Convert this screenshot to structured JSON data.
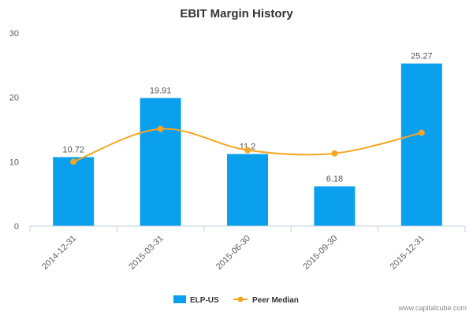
{
  "chart_data": {
    "type": "bar",
    "title": "EBIT Margin History",
    "categories": [
      "2014-12-31",
      "2015-03-31",
      "2015-06-30",
      "2015-09-30",
      "2015-12-31"
    ],
    "series": [
      {
        "name": "ELP-US",
        "type": "bar",
        "values": [
          10.72,
          19.91,
          11.2,
          6.18,
          25.27
        ],
        "value_labels": [
          "10.72",
          "19.91",
          "11.2",
          "6.18",
          "25.27"
        ],
        "color": "#0aa0ee"
      },
      {
        "name": "Peer Median",
        "type": "line",
        "values": [
          10.0,
          15.1,
          11.8,
          11.3,
          14.5
        ],
        "color": "#f5a623"
      }
    ],
    "y_ticks": [
      "0",
      "10",
      "20",
      "30"
    ],
    "ylim": [
      0,
      30
    ],
    "grid": false,
    "legend": "bottom-center",
    "credit": "www.capitalcube.com"
  }
}
